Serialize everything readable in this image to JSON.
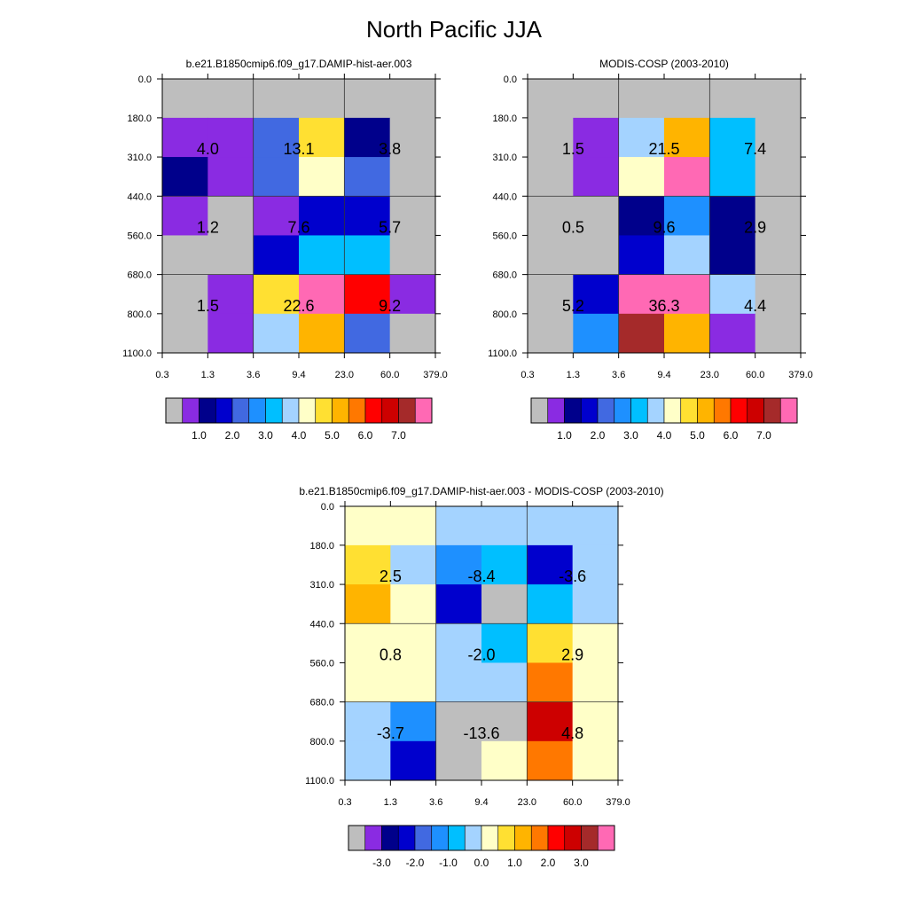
{
  "title": "North Pacific JJA",
  "colors": {
    "palette": [
      "#bebebe",
      "#8a2be2",
      "#00008b",
      "#0000cd",
      "#4169e1",
      "#1e90ff",
      "#00bfff",
      "#a4d3ff",
      "#ffffc8",
      "#ffe032",
      "#ffb400",
      "#ff7800",
      "#ff0000",
      "#cd0000",
      "#a52a2a",
      "#ff69b4"
    ]
  },
  "chart_data": [
    {
      "type": "heatmap",
      "title": "b.e21.B1850cmip6.f09_g17.DAMIP-hist-aer.003",
      "x_ticks": [
        "0.3",
        "1.3",
        "3.6",
        "9.4",
        "23.0",
        "60.0",
        "379.0"
      ],
      "y_ticks": [
        "0.0",
        "180.0",
        "310.0",
        "440.0",
        "560.0",
        "680.0",
        "800.0",
        "1100.0"
      ],
      "grid": true,
      "cells": [
        [
          0,
          0,
          0,
          0,
          0,
          0
        ],
        [
          1,
          1,
          4,
          9,
          2,
          0
        ],
        [
          2,
          1,
          4,
          8,
          4,
          0
        ],
        [
          1,
          0,
          1,
          3,
          3,
          0
        ],
        [
          0,
          0,
          3,
          6,
          6,
          0
        ],
        [
          0,
          1,
          9,
          15,
          12,
          1
        ],
        [
          0,
          1,
          7,
          10,
          4,
          0
        ]
      ],
      "block_labels": [
        [
          "4.0",
          "13.1",
          "3.8"
        ],
        [
          "1.2",
          "7.6",
          "5.7"
        ],
        [
          "1.5",
          "22.6",
          "9.2"
        ]
      ],
      "colorbar_labels": [
        "1.0",
        "2.0",
        "3.0",
        "4.0",
        "5.0",
        "6.0",
        "7.0"
      ]
    },
    {
      "type": "heatmap",
      "title": "MODIS-COSP (2003-2010)",
      "x_ticks": [
        "0.3",
        "1.3",
        "3.6",
        "9.4",
        "23.0",
        "60.0",
        "379.0"
      ],
      "y_ticks": [
        "0.0",
        "180.0",
        "310.0",
        "440.0",
        "560.0",
        "680.0",
        "800.0",
        "1100.0"
      ],
      "grid": true,
      "cells": [
        [
          0,
          0,
          0,
          0,
          0,
          0
        ],
        [
          0,
          1,
          7,
          10,
          6,
          0
        ],
        [
          0,
          1,
          8,
          15,
          6,
          0
        ],
        [
          0,
          0,
          2,
          5,
          2,
          0
        ],
        [
          0,
          0,
          3,
          7,
          2,
          0
        ],
        [
          0,
          3,
          15,
          15,
          7,
          0
        ],
        [
          0,
          5,
          14,
          10,
          1,
          0
        ]
      ],
      "block_labels": [
        [
          "1.5",
          "21.5",
          "7.4"
        ],
        [
          "0.5",
          "9.6",
          "2.9"
        ],
        [
          "5.2",
          "36.3",
          "4.4"
        ]
      ],
      "colorbar_labels": [
        "1.0",
        "2.0",
        "3.0",
        "4.0",
        "5.0",
        "6.0",
        "7.0"
      ]
    },
    {
      "type": "heatmap",
      "title": "b.e21.B1850cmip6.f09_g17.DAMIP-hist-aer.003 - MODIS-COSP (2003-2010)",
      "x_ticks": [
        "0.3",
        "1.3",
        "3.6",
        "9.4",
        "23.0",
        "60.0",
        "379.0"
      ],
      "y_ticks": [
        "0.0",
        "180.0",
        "310.0",
        "440.0",
        "560.0",
        "680.0",
        "800.0",
        "1100.0"
      ],
      "grid": true,
      "cells": [
        [
          8,
          8,
          7,
          7,
          7,
          7
        ],
        [
          9,
          7,
          5,
          6,
          3,
          7
        ],
        [
          10,
          8,
          3,
          0,
          6,
          7
        ],
        [
          8,
          8,
          7,
          6,
          9,
          8
        ],
        [
          8,
          8,
          7,
          7,
          11,
          8
        ],
        [
          7,
          5,
          0,
          0,
          13,
          8
        ],
        [
          7,
          3,
          0,
          8,
          11,
          8
        ]
      ],
      "block_labels": [
        [
          "2.5",
          "-8.4",
          "-3.6"
        ],
        [
          "0.8",
          "-2.0",
          "2.9"
        ],
        [
          "-3.7",
          "-13.6",
          "4.8"
        ]
      ],
      "colorbar_labels": [
        "-3.0",
        "-2.0",
        "-1.0",
        "0.0",
        "1.0",
        "2.0",
        "3.0"
      ]
    }
  ]
}
